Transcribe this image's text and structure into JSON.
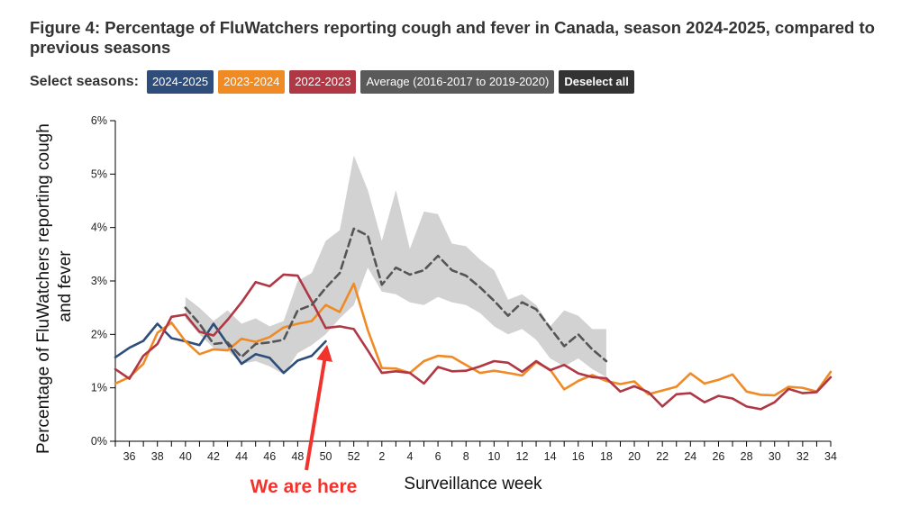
{
  "title": "Figure 4: Percentage of FluWatchers reporting cough and fever in Canada, season 2024-2025, compared to previous seasons",
  "season_selector": {
    "label": "Select seasons:",
    "buttons": [
      {
        "label": "2024-2025",
        "color": "#2e4d7b"
      },
      {
        "label": "2023-2024",
        "color": "#f08a24"
      },
      {
        "label": "2022-2023",
        "color": "#b03744"
      },
      {
        "label": "Average (2016-2017 to 2019-2020)",
        "color": "#5a5a5a"
      },
      {
        "label": "Deselect all",
        "color": "#333333"
      }
    ]
  },
  "annotation": {
    "text": "We are here",
    "color": "#f2322c",
    "points_to_week": "50",
    "points_to_value": 1.9
  },
  "chart_data": {
    "type": "line",
    "title": "",
    "xlabel": "Surveillance week",
    "ylabel": "Percentage of FluWatchers reporting cough and fever",
    "ylabel_lines": [
      "Percentage of FluWatchers reporting cough",
      "and fever"
    ],
    "ylim": [
      0,
      6
    ],
    "y_ticks": [
      "0%",
      "1%",
      "2%",
      "3%",
      "4%",
      "5%",
      "6%"
    ],
    "x_ticks": [
      "36",
      "38",
      "40",
      "42",
      "44",
      "46",
      "48",
      "50",
      "52",
      "2",
      "4",
      "6",
      "8",
      "10",
      "12",
      "14",
      "16",
      "18",
      "20",
      "22",
      "24",
      "26",
      "28",
      "30",
      "32",
      "34"
    ],
    "weeks": [
      "35",
      "36",
      "37",
      "38",
      "39",
      "40",
      "41",
      "42",
      "43",
      "44",
      "45",
      "46",
      "47",
      "48",
      "49",
      "50",
      "51",
      "52",
      "1",
      "2",
      "3",
      "4",
      "5",
      "6",
      "7",
      "8",
      "9",
      "10",
      "11",
      "12",
      "13",
      "14",
      "15",
      "16",
      "17",
      "18",
      "19",
      "20",
      "21",
      "22",
      "23",
      "24",
      "25",
      "26",
      "27",
      "28",
      "29",
      "30",
      "31",
      "32",
      "33",
      "34"
    ],
    "grid": false,
    "series": [
      {
        "name": "2024-2025",
        "color": "#2e4d7b",
        "start_week": "35",
        "values": [
          1.57,
          1.75,
          1.88,
          2.2,
          1.93,
          1.87,
          1.8,
          2.2,
          1.82,
          1.45,
          1.63,
          1.56,
          1.28,
          1.51,
          1.6,
          1.87
        ]
      },
      {
        "name": "2023-2024",
        "color": "#f08a24",
        "start_week": "35",
        "values": [
          1.08,
          1.2,
          1.45,
          2.03,
          2.22,
          1.87,
          1.63,
          1.72,
          1.7,
          1.92,
          1.86,
          1.95,
          2.13,
          2.2,
          2.25,
          2.55,
          2.42,
          2.95,
          2.08,
          1.37,
          1.36,
          1.28,
          1.5,
          1.6,
          1.58,
          1.43,
          1.28,
          1.32,
          1.28,
          1.23,
          1.48,
          1.34,
          0.97,
          1.13,
          1.24,
          1.13,
          1.07,
          1.12,
          0.88,
          0.95,
          1.02,
          1.27,
          1.08,
          1.15,
          1.25,
          0.93,
          0.87,
          0.86,
          1.02,
          1.0,
          0.93,
          1.3
        ]
      },
      {
        "name": "2022-2023",
        "color": "#b03744",
        "start_week": "35",
        "values": [
          1.35,
          1.17,
          1.6,
          1.82,
          2.33,
          2.37,
          2.05,
          1.98,
          2.27,
          2.6,
          2.98,
          2.9,
          3.12,
          3.1,
          2.62,
          2.12,
          2.15,
          2.1,
          1.7,
          1.28,
          1.31,
          1.28,
          1.08,
          1.39,
          1.31,
          1.32,
          1.4,
          1.5,
          1.47,
          1.3,
          1.5,
          1.33,
          1.43,
          1.27,
          1.2,
          1.18,
          0.93,
          1.03,
          0.92,
          0.65,
          0.88,
          0.9,
          0.73,
          0.85,
          0.8,
          0.65,
          0.6,
          0.73,
          0.98,
          0.9,
          0.92,
          1.2
        ]
      },
      {
        "name": "Average (2016-2017 to 2019-2020)",
        "color": "#555555",
        "dashed": true,
        "start_week": "40",
        "values": [
          2.5,
          2.2,
          1.82,
          1.85,
          1.58,
          1.82,
          1.85,
          1.9,
          2.45,
          2.55,
          2.87,
          3.15,
          3.98,
          3.85,
          2.93,
          3.25,
          3.12,
          3.2,
          3.47,
          3.2,
          3.1,
          2.88,
          2.63,
          2.35,
          2.6,
          2.47,
          2.12,
          1.78,
          2.0,
          1.72,
          1.5
        ],
        "band_lower": [
          2.3,
          2.0,
          1.75,
          1.7,
          1.45,
          1.5,
          1.4,
          1.25,
          1.65,
          1.8,
          2.0,
          2.3,
          2.55,
          3.25,
          2.8,
          2.75,
          2.6,
          2.55,
          2.7,
          2.6,
          2.55,
          2.4,
          2.15,
          2.0,
          2.1,
          1.9,
          1.55,
          1.4,
          1.55,
          1.35,
          1.2
        ],
        "band_upper": [
          2.7,
          2.5,
          2.25,
          2.45,
          2.2,
          2.3,
          2.15,
          2.25,
          3.0,
          3.15,
          3.75,
          3.95,
          5.35,
          4.7,
          3.75,
          4.7,
          3.6,
          4.3,
          4.25,
          3.7,
          3.65,
          3.4,
          3.2,
          2.65,
          2.75,
          2.55,
          2.15,
          2.45,
          2.35,
          2.1,
          2.1
        ]
      }
    ]
  }
}
